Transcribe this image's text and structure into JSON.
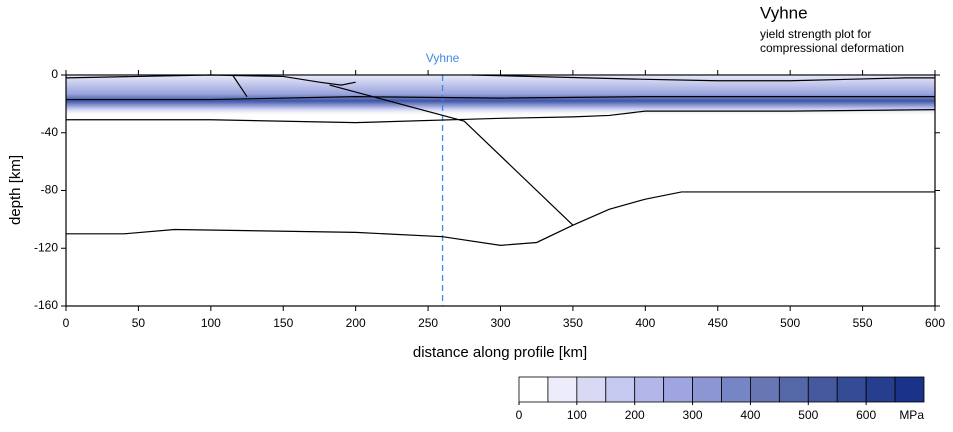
{
  "chart_data": {
    "type": "line",
    "title": "Vyhne",
    "subtitle": [
      "yield strength plot for",
      "compressional deformation"
    ],
    "x_label": "distance along profile [km]",
    "y_label": "depth [km]",
    "xlim": [
      0,
      600
    ],
    "ylim": [
      -160,
      0
    ],
    "xticks": [
      0,
      50,
      100,
      150,
      200,
      250,
      300,
      350,
      400,
      450,
      500,
      550,
      600
    ],
    "yticks": [
      -160,
      -120,
      -80,
      -40,
      0
    ],
    "marker": {
      "x": 260,
      "label": "Vyhne",
      "color": "#3d8be6"
    },
    "series": [
      {
        "color": "#000000",
        "x": [
          0,
          50,
          100,
          150,
          175,
          190,
          200
        ],
        "values": [
          -2,
          -1,
          0,
          -1,
          -5,
          -7,
          -5
        ]
      },
      {
        "color": "#000000",
        "x": [
          280,
          400,
          450,
          500,
          540,
          580,
          600
        ],
        "values": [
          0,
          -3,
          -4,
          -4,
          -3,
          -2,
          -2
        ]
      },
      {
        "color": "#000000",
        "x": [
          0,
          100,
          200,
          300,
          400,
          500,
          600
        ],
        "values": [
          -17,
          -17,
          -15,
          -16,
          -15,
          -15,
          -15
        ]
      },
      {
        "color": "#000000",
        "x": [
          0,
          100,
          200,
          300,
          350,
          375,
          400,
          500,
          600
        ],
        "values": [
          -31,
          -31,
          -33,
          -30,
          -29,
          -28,
          -25,
          -25,
          -24
        ]
      },
      {
        "color": "#000000",
        "x": [
          115,
          125
        ],
        "values": [
          0,
          -15
        ]
      },
      {
        "color": "#000000",
        "x": [
          182,
          275,
          350
        ],
        "values": [
          -7,
          -32,
          -104
        ]
      },
      {
        "color": "#000000",
        "x": [
          0,
          40,
          75,
          200,
          260,
          300,
          325,
          350,
          375,
          400,
          425,
          500,
          600
        ],
        "values": [
          -110,
          -110,
          -107,
          -109,
          -112,
          -118,
          -116,
          -104,
          -93,
          -86,
          -81,
          -81,
          -81
        ]
      }
    ],
    "colorbar": {
      "lim": [
        0,
        700
      ],
      "colors": [
        "#ffffff",
        "#ececfb",
        "#d9d9f5",
        "#c5c8ef",
        "#b2b6e8",
        "#9fa5e0",
        "#8c96d2",
        "#7686c4",
        "#6677b4",
        "#5468a8",
        "#46599e",
        "#344c96",
        "#263e8e",
        "#1a3388"
      ],
      "ticks": [
        0,
        100,
        200,
        300,
        400,
        500,
        600
      ],
      "unit": "MPa"
    }
  }
}
